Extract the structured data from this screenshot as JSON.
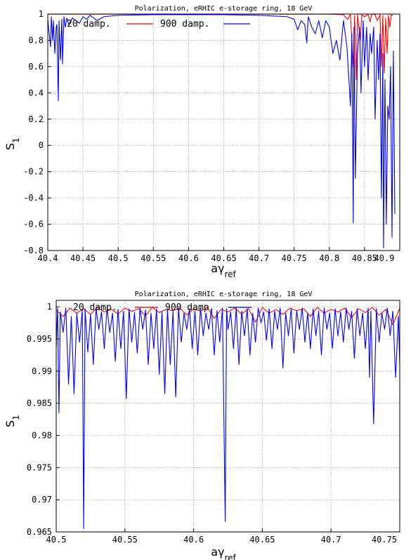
{
  "chart_data": [
    {
      "type": "line",
      "title": "Polarization, eRHIC e-storage ring, 18 GeV",
      "xlabel_main": "aγ",
      "xlabel_sub": "ref",
      "ylabel_main": "S",
      "ylabel_sub": "1",
      "xlim": [
        40.4,
        40.9
      ],
      "ylim": [
        -0.8,
        1.0
      ],
      "xticks": [
        "40.4",
        "40.45",
        "40.5",
        "40.55",
        "40.6",
        "40.65",
        "40.7",
        "40.75",
        "40.8",
        "40.85",
        "40.9"
      ],
      "yticks": [
        "-0.8",
        "-0.6",
        "-0.4",
        "-0.2",
        "0",
        "0.2",
        "0.4",
        "0.6",
        "0.8",
        "1"
      ],
      "grid": true,
      "legend_position": "top-left",
      "series": [
        {
          "name": "20 damp.",
          "color": "#ff0000",
          "x": [
            40.4,
            40.8,
            40.82,
            40.826,
            40.83,
            40.834,
            40.836,
            40.838,
            40.84,
            40.844,
            40.846,
            40.85,
            40.855,
            40.858,
            40.86,
            40.865,
            40.868,
            40.872,
            40.874,
            40.876,
            40.878,
            40.88,
            40.882,
            40.884,
            40.886,
            40.888,
            40.89
          ],
          "y": [
            0.999,
            0.999,
            0.995,
            0.96,
            0.998,
            0.6,
            0.99,
            0.5,
            0.995,
            0.8,
            0.995,
            0.98,
            0.997,
            0.94,
            0.998,
            0.997,
            0.95,
            0.995,
            0.6,
            0.99,
            0.55,
            0.97,
            0.7,
            0.99,
            0.9,
            0.995,
            0.99
          ]
        },
        {
          "name": "900 damp.",
          "color": "#0000ff",
          "x": [
            40.4,
            40.402,
            40.404,
            40.405,
            40.407,
            40.408,
            40.41,
            40.412,
            40.413,
            40.415,
            40.416,
            40.418,
            40.42,
            40.421,
            40.423,
            40.425,
            40.427,
            40.43,
            40.435,
            40.44,
            40.445,
            40.45,
            40.455,
            40.46,
            40.47,
            40.48,
            40.5,
            40.55,
            40.6,
            40.65,
            40.7,
            40.72,
            40.74,
            40.75,
            40.755,
            40.76,
            40.765,
            40.768,
            40.77,
            40.775,
            40.78,
            40.785,
            40.79,
            40.795,
            40.8,
            40.805,
            40.81,
            40.815,
            40.82,
            40.825,
            40.83,
            40.832,
            40.834,
            40.835,
            40.837,
            40.84,
            40.843,
            40.845,
            40.848,
            40.85,
            40.853,
            40.855,
            40.858,
            40.86,
            40.863,
            40.865,
            40.868,
            40.87,
            40.872,
            40.874,
            40.876,
            40.877,
            40.879,
            40.881,
            40.883,
            40.885,
            40.887,
            40.889,
            40.891,
            40.893
          ],
          "y": [
            0.96,
            0.85,
            0.75,
            0.98,
            0.8,
            0.95,
            0.7,
            0.9,
            0.92,
            0.34,
            0.95,
            0.65,
            0.96,
            0.62,
            0.98,
            0.9,
            0.97,
            0.92,
            0.97,
            0.95,
            0.93,
            0.98,
            0.96,
            0.99,
            0.95,
            0.98,
            0.99,
            0.995,
            0.995,
            0.995,
            0.99,
            0.985,
            0.98,
            0.96,
            0.88,
            0.95,
            0.92,
            0.78,
            0.98,
            0.9,
            0.85,
            0.95,
            0.82,
            0.95,
            0.9,
            0.7,
            0.8,
            0.65,
            0.95,
            0.75,
            0.3,
            0.85,
            -0.59,
            0.9,
            -0.25,
            0.7,
            0.9,
            0.4,
            0.95,
            0.6,
            0.9,
            0.5,
            0.85,
            0.7,
            0.9,
            0.2,
            0.8,
            0.5,
            0.85,
            -0.4,
            0.7,
            -0.78,
            0.5,
            -0.6,
            0.3,
            0.2,
            0.6,
            -0.7,
            0.72,
            -0.52
          ]
        }
      ]
    },
    {
      "type": "line",
      "title": "Polarization, eRHIC e-storage ring, 18 GeV",
      "xlabel_main": "aγ",
      "xlabel_sub": "ref",
      "ylabel_main": "S",
      "ylabel_sub": "1",
      "xlim": [
        40.5,
        40.75
      ],
      "ylim": [
        0.965,
        1.001
      ],
      "xticks": [
        "40.5",
        "40.55",
        "40.6",
        "40.65",
        "40.7",
        "40.75"
      ],
      "yticks": [
        "0.965",
        "0.97",
        "0.975",
        "0.98",
        "0.985",
        "0.99",
        "0.995",
        "1"
      ],
      "grid": true,
      "legend_position": "top-left",
      "series": [
        {
          "name": "20 damp.",
          "color": "#ff0000",
          "x": [
            40.5,
            40.505,
            40.51,
            40.515,
            40.52,
            40.525,
            40.53,
            40.535,
            40.54,
            40.545,
            40.55,
            40.555,
            40.56,
            40.565,
            40.57,
            40.575,
            40.58,
            40.585,
            40.59,
            40.595,
            40.6,
            40.605,
            40.61,
            40.615,
            40.62,
            40.625,
            40.63,
            40.635,
            40.64,
            40.645,
            40.65,
            40.655,
            40.66,
            40.665,
            40.67,
            40.675,
            40.68,
            40.685,
            40.69,
            40.695,
            40.7,
            40.705,
            40.71,
            40.715,
            40.72,
            40.725,
            40.73,
            40.735,
            40.74,
            40.745,
            40.75
          ],
          "y": [
            0.9995,
            0.9985,
            0.9998,
            0.999,
            0.9997,
            0.9988,
            0.9999,
            0.9992,
            0.9996,
            0.9989,
            0.9998,
            0.9993,
            0.9997,
            0.9986,
            0.9999,
            0.9991,
            0.9996,
            0.9994,
            0.9998,
            0.9987,
            0.9997,
            0.9993,
            0.9999,
            0.9982,
            0.9996,
            0.9992,
            0.9998,
            0.9989,
            0.9997,
            0.9976,
            0.9999,
            0.999,
            0.9996,
            0.9988,
            0.9998,
            0.9994,
            0.9997,
            0.9985,
            0.9999,
            0.999,
            0.9996,
            0.9992,
            0.9998,
            0.9983,
            0.9997,
            0.9991,
            0.9999,
            0.9987,
            0.9996,
            0.9972,
            0.9998
          ]
        },
        {
          "name": "900 damp.",
          "color": "#0000ff",
          "x": [
            40.5,
            40.501,
            40.502,
            40.503,
            40.505,
            40.507,
            40.509,
            40.511,
            40.513,
            40.515,
            40.517,
            40.519,
            40.52,
            40.521,
            40.523,
            40.525,
            40.527,
            40.529,
            40.531,
            40.533,
            40.535,
            40.537,
            40.539,
            40.541,
            40.543,
            40.545,
            40.547,
            40.549,
            40.551,
            40.553,
            40.555,
            40.557,
            40.559,
            40.561,
            40.563,
            40.565,
            40.567,
            40.569,
            40.571,
            40.573,
            40.575,
            40.577,
            40.579,
            40.581,
            40.583,
            40.585,
            40.587,
            40.589,
            40.591,
            40.593,
            40.595,
            40.597,
            40.599,
            40.601,
            40.603,
            40.605,
            40.607,
            40.609,
            40.611,
            40.613,
            40.615,
            40.617,
            40.619,
            40.621,
            40.623,
            40.624,
            40.625,
            40.627,
            40.629,
            40.631,
            40.633,
            40.635,
            40.637,
            40.639,
            40.641,
            40.643,
            40.645,
            40.647,
            40.649,
            40.651,
            40.653,
            40.655,
            40.657,
            40.659,
            40.661,
            40.663,
            40.665,
            40.667,
            40.669,
            40.671,
            40.673,
            40.675,
            40.677,
            40.679,
            40.681,
            40.683,
            40.685,
            40.687,
            40.689,
            40.691,
            40.693,
            40.695,
            40.697,
            40.699,
            40.701,
            40.703,
            40.705,
            40.707,
            40.709,
            40.711,
            40.713,
            40.715,
            40.717,
            40.719,
            40.721,
            40.723,
            40.725,
            40.727,
            40.728,
            40.729,
            40.731,
            40.733,
            40.735,
            40.737,
            40.739,
            40.741,
            40.743,
            40.745,
            40.747,
            40.749,
            40.75
          ],
          "y": [
            0.9935,
            0.9998,
            0.9835,
            0.9992,
            0.996,
            0.9998,
            0.988,
            0.9985,
            0.9865,
            0.999,
            0.9945,
            0.9995,
            0.9655,
            0.9997,
            0.993,
            0.9988,
            0.991,
            0.9997,
            0.9965,
            0.9992,
            0.9935,
            0.9998,
            0.996,
            0.999,
            0.9915,
            0.9996,
            0.9935,
            0.9993,
            0.9857,
            0.9997,
            0.9945,
            0.9991,
            0.9928,
            0.9998,
            0.9965,
            0.9995,
            0.991,
            0.999,
            0.9935,
            0.9997,
            0.9895,
            0.9992,
            0.9865,
            0.9997,
            0.991,
            0.9993,
            0.986,
            0.9998,
            0.9945,
            0.999,
            0.9965,
            0.9997,
            0.9935,
            0.9993,
            0.9925,
            0.9998,
            0.9955,
            0.999,
            0.9965,
            0.9997,
            0.9925,
            0.9994,
            0.9945,
            0.9998,
            0.9666,
            0.9997,
            0.9965,
            0.9992,
            0.9935,
            0.9998,
            0.991,
            0.9993,
            0.9955,
            0.9997,
            0.9925,
            0.999,
            0.9945,
            0.9998,
            0.9975,
            0.9992,
            0.9948,
            0.9997,
            0.9935,
            0.9993,
            0.9965,
            0.9998,
            0.9905,
            0.999,
            0.9955,
            0.9997,
            0.9928,
            0.9994,
            0.9965,
            0.9998,
            0.9945,
            0.999,
            0.9935,
            0.9997,
            0.9955,
            0.9993,
            0.9925,
            0.9998,
            0.9965,
            0.999,
            0.9935,
            0.9997,
            0.9955,
            0.9992,
            0.9945,
            0.9998,
            0.9965,
            0.9993,
            0.992,
            0.9997,
            0.9955,
            0.999,
            0.9935,
            0.9998,
            0.989,
            0.9993,
            0.9818,
            0.9997,
            0.9945,
            0.999,
            0.9965,
            0.9998,
            0.9955,
            0.9993,
            0.989,
            0.9985,
            0.991
          ]
        }
      ]
    }
  ]
}
